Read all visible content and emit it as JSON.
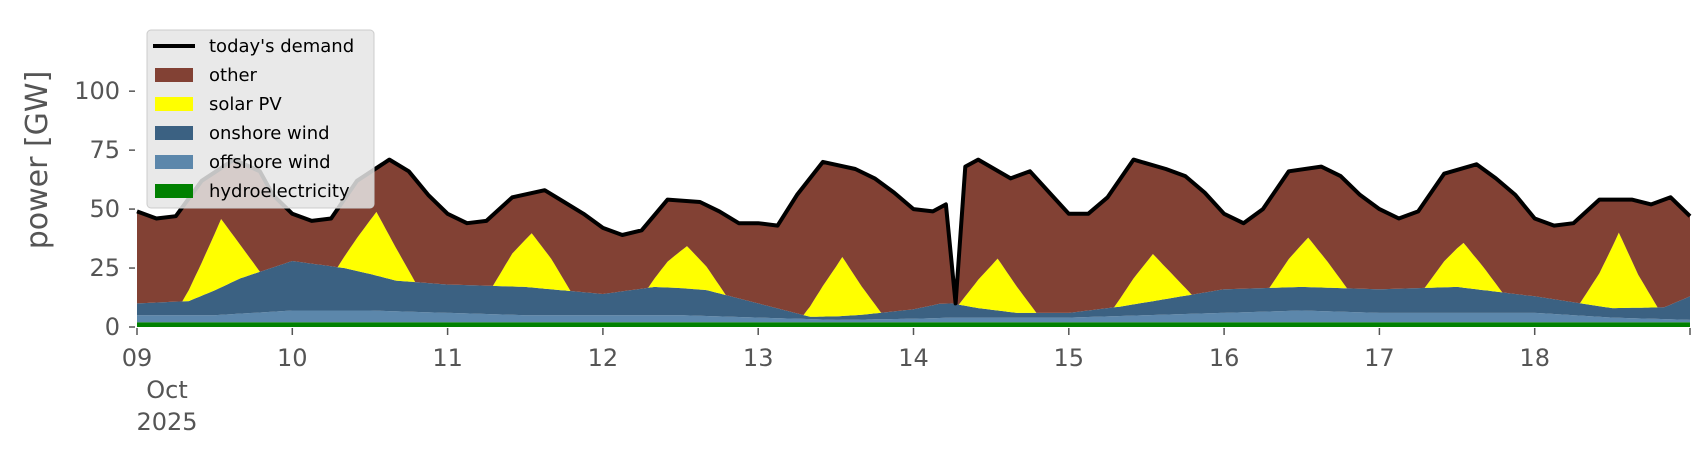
{
  "chart_data": {
    "type": "area",
    "title": "",
    "xlabel": "",
    "ylabel": "power [GW]",
    "x_start": "2025-10-09",
    "x_end": "2025-10-19",
    "x_ticks": [
      {
        "value": "2025-10-09",
        "lines": [
          "09",
          "Oct",
          "2025"
        ]
      },
      {
        "value": "2025-10-10",
        "lines": [
          "10"
        ]
      },
      {
        "value": "2025-10-11",
        "lines": [
          "11"
        ]
      },
      {
        "value": "2025-10-12",
        "lines": [
          "12"
        ]
      },
      {
        "value": "2025-10-13",
        "lines": [
          "13"
        ]
      },
      {
        "value": "2025-10-14",
        "lines": [
          "14"
        ]
      },
      {
        "value": "2025-10-15",
        "lines": [
          "15"
        ]
      },
      {
        "value": "2025-10-16",
        "lines": [
          "16"
        ]
      },
      {
        "value": "2025-10-17",
        "lines": [
          "17"
        ]
      },
      {
        "value": "2025-10-18",
        "lines": [
          "18"
        ]
      }
    ],
    "ylim": [
      0,
      120
    ],
    "y_ticks": [
      0,
      25,
      50,
      75,
      100
    ],
    "grid": false,
    "legend_position": "top-left",
    "legend": [
      {
        "label": "today's demand",
        "kind": "line",
        "color": "#000000"
      },
      {
        "label": "other",
        "kind": "patch",
        "color": "#824134"
      },
      {
        "label": "solar PV",
        "kind": "patch",
        "color": "#ffff00"
      },
      {
        "label": "onshore wind",
        "kind": "patch",
        "color": "#3b6182"
      },
      {
        "label": "offshore wind",
        "kind": "patch",
        "color": "#5c87ab"
      },
      {
        "label": "hydroelectricity",
        "kind": "patch",
        "color": "#008000"
      }
    ],
    "series": [
      {
        "key": "hydroelectricity",
        "color": "#008000",
        "x": [
          "2025-10-09",
          "2025-10-11",
          "2025-10-13",
          "2025-10-15",
          "2025-10-17",
          "2025-10-19"
        ],
        "values": [
          2,
          2,
          2,
          2,
          2,
          2
        ]
      },
      {
        "key": "offshore wind",
        "color": "#5c87ab",
        "x": [
          "2025-10-09",
          "2025-10-09 12:00",
          "2025-10-10",
          "2025-10-10 12:00",
          "2025-10-11",
          "2025-10-11 12:00",
          "2025-10-12",
          "2025-10-12 12:00",
          "2025-10-13",
          "2025-10-13 12:00",
          "2025-10-14",
          "2025-10-14 06:00",
          "2025-10-14 12:00",
          "2025-10-15",
          "2025-10-15 12:00",
          "2025-10-16",
          "2025-10-16 12:00",
          "2025-10-17",
          "2025-10-17 12:00",
          "2025-10-18",
          "2025-10-18 12:00",
          "2025-10-19"
        ],
        "values": [
          3,
          3,
          5,
          5,
          4,
          3,
          3,
          3,
          2,
          1,
          1.5,
          2,
          2,
          2,
          3,
          4,
          5,
          4,
          4,
          4,
          2,
          1
        ]
      },
      {
        "key": "onshore wind",
        "color": "#3b6182",
        "x": [
          "2025-10-09",
          "2025-10-09 08:00",
          "2025-10-09 16:00",
          "2025-10-10",
          "2025-10-10 08:00",
          "2025-10-10 16:00",
          "2025-10-11",
          "2025-10-11 12:00",
          "2025-10-12",
          "2025-10-12 08:00",
          "2025-10-12 16:00",
          "2025-10-13",
          "2025-10-13 08:00",
          "2025-10-13 16:00",
          "2025-10-14",
          "2025-10-14 04:00",
          "2025-10-14 06:00",
          "2025-10-14 10:00",
          "2025-10-14 16:00",
          "2025-10-15",
          "2025-10-15 08:00",
          "2025-10-15 16:00",
          "2025-10-16",
          "2025-10-16 12:00",
          "2025-10-17",
          "2025-10-17 12:00",
          "2025-10-18",
          "2025-10-18 12:00",
          "2025-10-18 20:00",
          "2025-10-19"
        ],
        "values": [
          5,
          6,
          15,
          21,
          18,
          13,
          12,
          12,
          9,
          12,
          11,
          6,
          1,
          2,
          4,
          6,
          6,
          4,
          2,
          2,
          4,
          7,
          10,
          10,
          10,
          11,
          7,
          4,
          5,
          10
        ]
      },
      {
        "key": "solar PV",
        "color": "#ffff00",
        "x": [
          "2025-10-09",
          "2025-10-09 07:00",
          "2025-10-09 10:00",
          "2025-10-09 13:00",
          "2025-10-09 16:00",
          "2025-10-09 19:00",
          "2025-10-10 07:00",
          "2025-10-10 10:00",
          "2025-10-10 13:00",
          "2025-10-10 16:00",
          "2025-10-10 19:00",
          "2025-10-11 07:00",
          "2025-10-11 10:00",
          "2025-10-11 13:00",
          "2025-10-11 16:00",
          "2025-10-11 19:00",
          "2025-10-12 07:00",
          "2025-10-12 10:00",
          "2025-10-12 13:00",
          "2025-10-12 16:00",
          "2025-10-12 19:00",
          "2025-10-13 07:00",
          "2025-10-13 10:00",
          "2025-10-13 13:00",
          "2025-10-13 16:00",
          "2025-10-13 19:00",
          "2025-10-14 07:00",
          "2025-10-14 10:00",
          "2025-10-14 13:00",
          "2025-10-14 16:00",
          "2025-10-14 19:00",
          "2025-10-15 07:00",
          "2025-10-15 10:00",
          "2025-10-15 13:00",
          "2025-10-15 16:00",
          "2025-10-15 19:00",
          "2025-10-16 07:00",
          "2025-10-16 10:00",
          "2025-10-16 13:00",
          "2025-10-16 16:00",
          "2025-10-16 19:00",
          "2025-10-17 07:00",
          "2025-10-17 10:00",
          "2025-10-17 13:00",
          "2025-10-17 16:00",
          "2025-10-17 19:00",
          "2025-10-18 07:00",
          "2025-10-18 10:00",
          "2025-10-18 13:00",
          "2025-10-18 16:00",
          "2025-10-18 19:00",
          "2025-10-19"
        ],
        "values": [
          0,
          0,
          14,
          29,
          14,
          0,
          0,
          14,
          27,
          14,
          0,
          0,
          14,
          23,
          13,
          0,
          0,
          11,
          18,
          10,
          0,
          0,
          13,
          25,
          12,
          0,
          0,
          12,
          22,
          11,
          0,
          0,
          11,
          20,
          10,
          0,
          0,
          12,
          21,
          11,
          0,
          0,
          11,
          19,
          10,
          0,
          0,
          14,
          32,
          14,
          0,
          0
        ]
      },
      {
        "key": "other",
        "color": "#824134",
        "stack_to_demand": true
      }
    ],
    "demand": {
      "key": "today's demand",
      "color": "#000000",
      "x": [
        "2025-10-09",
        "2025-10-09 03:00",
        "2025-10-09 06:00",
        "2025-10-09 10:00",
        "2025-10-09 15:00",
        "2025-10-09 19:00",
        "2025-10-09 21:00",
        "2025-10-10",
        "2025-10-10 03:00",
        "2025-10-10 06:00",
        "2025-10-10 10:00",
        "2025-10-10 15:00",
        "2025-10-10 18:00",
        "2025-10-10 21:00",
        "2025-10-11",
        "2025-10-11 03:00",
        "2025-10-11 06:00",
        "2025-10-11 10:00",
        "2025-10-11 15:00",
        "2025-10-11 18:00",
        "2025-10-11 21:00",
        "2025-10-12",
        "2025-10-12 03:00",
        "2025-10-12 06:00",
        "2025-10-12 10:00",
        "2025-10-12 15:00",
        "2025-10-12 18:00",
        "2025-10-12 21:00",
        "2025-10-13",
        "2025-10-13 03:00",
        "2025-10-13 06:00",
        "2025-10-13 10:00",
        "2025-10-13 15:00",
        "2025-10-13 18:00",
        "2025-10-13 21:00",
        "2025-10-14",
        "2025-10-14 03:00",
        "2025-10-14 05:00",
        "2025-10-14 06:30",
        "2025-10-14 08:00",
        "2025-10-14 10:00",
        "2025-10-14 15:00",
        "2025-10-14 18:00",
        "2025-10-14 21:00",
        "2025-10-15",
        "2025-10-15 03:00",
        "2025-10-15 06:00",
        "2025-10-15 10:00",
        "2025-10-15 15:00",
        "2025-10-15 18:00",
        "2025-10-15 21:00",
        "2025-10-16",
        "2025-10-16 03:00",
        "2025-10-16 06:00",
        "2025-10-16 10:00",
        "2025-10-16 15:00",
        "2025-10-16 18:00",
        "2025-10-16 21:00",
        "2025-10-17",
        "2025-10-17 03:00",
        "2025-10-17 06:00",
        "2025-10-17 10:00",
        "2025-10-17 15:00",
        "2025-10-17 18:00",
        "2025-10-17 21:00",
        "2025-10-18",
        "2025-10-18 03:00",
        "2025-10-18 06:00",
        "2025-10-18 10:00",
        "2025-10-18 15:00",
        "2025-10-18 18:00",
        "2025-10-18 21:00",
        "2025-10-19"
      ],
      "values": [
        49,
        46,
        47,
        62,
        71,
        66,
        56,
        48,
        45,
        46,
        62,
        71,
        66,
        56,
        48,
        44,
        45,
        55,
        58,
        53,
        48,
        42,
        39,
        41,
        54,
        53,
        49,
        44,
        44,
        43,
        56,
        70,
        67,
        63,
        57,
        50,
        49,
        52,
        10,
        68,
        71,
        63,
        66,
        57,
        48,
        48,
        55,
        71,
        67,
        64,
        57,
        48,
        44,
        50,
        66,
        68,
        64,
        56,
        50,
        46,
        49,
        65,
        69,
        63,
        56,
        46,
        43,
        44,
        54,
        54,
        52,
        55,
        47
      ]
    }
  }
}
